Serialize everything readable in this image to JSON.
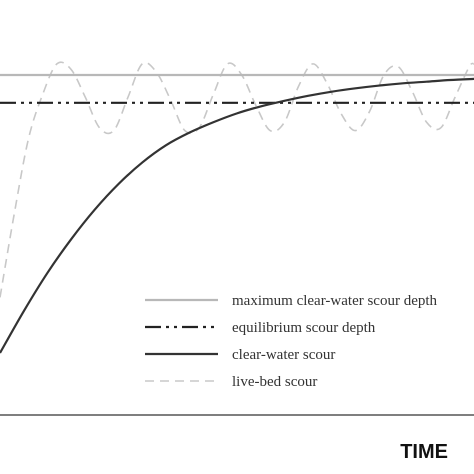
{
  "chart_data": {
    "type": "line",
    "title": "",
    "xlabel": "TIME",
    "ylabel": "",
    "xlim": [
      0,
      100
    ],
    "ylim": [
      0,
      100
    ],
    "grid": false,
    "legend_position": "bottom-right",
    "series": [
      {
        "name": "maximum clear-water scour depth",
        "style": "solid",
        "color": "#b8b8b8",
        "x": [
          0,
          100
        ],
        "y": [
          100,
          100
        ]
      },
      {
        "name": "equilibrium scour depth",
        "style": "dash-dot",
        "color": "#222222",
        "x": [
          0,
          100
        ],
        "y": [
          90,
          90
        ]
      },
      {
        "name": "clear-water scour",
        "style": "solid",
        "color": "#333333",
        "x": [
          0,
          5,
          10,
          15,
          20,
          25,
          30,
          35,
          40,
          45,
          50,
          55,
          60,
          65,
          70,
          75,
          80,
          85,
          90,
          95,
          100
        ],
        "y": [
          0,
          15,
          28.8,
          40.9,
          51.6,
          60.8,
          68.5,
          74.7,
          79.3,
          83,
          86.2,
          88.7,
          90.7,
          92.5,
          94,
          95.2,
          96.2,
          97,
          97.6,
          98.2,
          98.6
        ]
      },
      {
        "name": "live-bed scour",
        "style": "dashed",
        "color": "#c8c8c8",
        "x": [
          0,
          3,
          6,
          9,
          12,
          15,
          18,
          21,
          24,
          27,
          30,
          33,
          36,
          39,
          42,
          45,
          48,
          51,
          54,
          57,
          60,
          63,
          66,
          69,
          72,
          75,
          78,
          81,
          84,
          87,
          90,
          93,
          96,
          99,
          100
        ],
        "y": [
          20,
          50,
          77,
          93,
          104,
          102,
          92,
          81,
          80,
          92,
          104,
          101,
          91,
          80,
          81,
          93,
          104,
          100,
          89,
          80,
          83,
          96,
          104,
          97,
          86,
          80,
          87,
          100,
          103,
          94,
          83,
          81,
          92,
          103,
          104
        ]
      }
    ]
  }
}
